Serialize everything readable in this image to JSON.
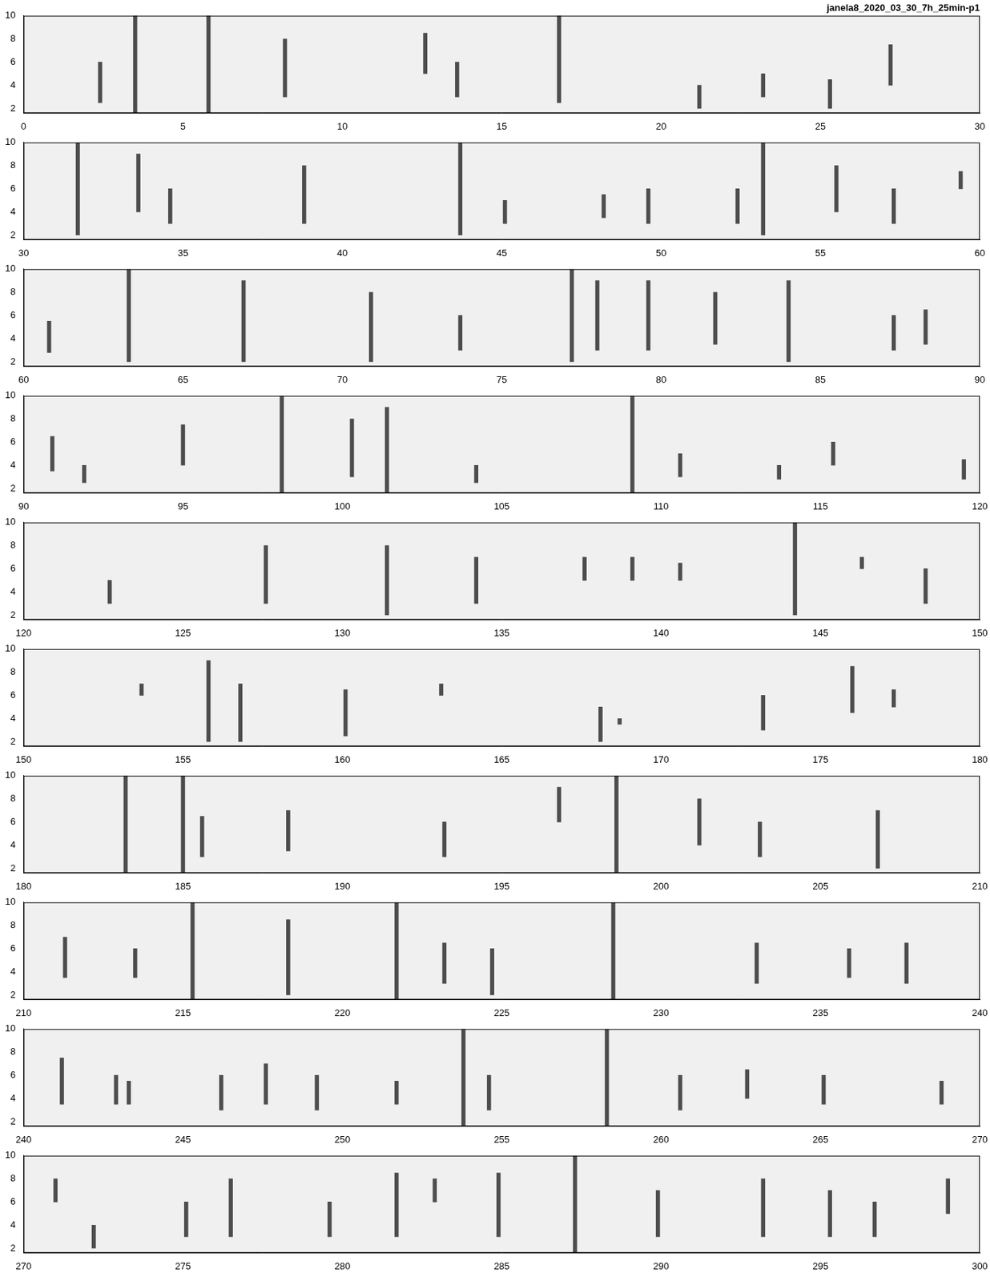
{
  "chart_data": [
    {
      "type": "bar",
      "title": "janela8_2020_03_30_7h_25min-p1",
      "x": [
        2.4,
        3.5,
        5.8,
        8.2,
        12.6,
        13.6,
        16.8,
        21.2,
        23.2,
        25.3,
        27.2
      ],
      "values": [
        [
          2.5,
          6
        ],
        [
          1.6,
          10
        ],
        [
          1.6,
          10
        ],
        [
          3,
          8
        ],
        [
          5,
          8.5
        ],
        [
          3,
          6
        ],
        [
          2.5,
          10
        ],
        [
          2,
          4
        ],
        [
          3,
          5
        ],
        [
          2,
          4.5
        ],
        [
          4,
          7.5
        ]
      ],
      "color": "#4d4d4d",
      "xlim": [
        0,
        30
      ],
      "xticks": [
        0,
        5,
        10,
        15,
        20,
        25,
        30
      ],
      "ylim": [
        1.6,
        10
      ],
      "yticks": [
        2,
        4,
        6,
        8,
        10
      ],
      "grid": false
    },
    {
      "type": "bar",
      "x": [
        31.7,
        33.6,
        34.6,
        38.8,
        43.7,
        45.1,
        48.2,
        49.6,
        52.4,
        53.2,
        55.5,
        57.3,
        59.4
      ],
      "values": [
        [
          2,
          10
        ],
        [
          4,
          9
        ],
        [
          3,
          6
        ],
        [
          3,
          8
        ],
        [
          2,
          10
        ],
        [
          3,
          5
        ],
        [
          3.5,
          5.5
        ],
        [
          3,
          6
        ],
        [
          3,
          6
        ],
        [
          2,
          10
        ],
        [
          4,
          8
        ],
        [
          3,
          6
        ],
        [
          6,
          7.5
        ]
      ],
      "color": "#4d4d4d",
      "xlim": [
        30,
        60
      ],
      "xticks": [
        30,
        35,
        40,
        45,
        50,
        55,
        60
      ],
      "ylim": [
        1.6,
        10
      ],
      "yticks": [
        2,
        4,
        6,
        8,
        10
      ],
      "grid": false
    },
    {
      "type": "bar",
      "x": [
        60.8,
        63.3,
        66.9,
        70.9,
        73.7,
        77.2,
        78,
        79.6,
        81.7,
        84,
        87.3,
        88.3
      ],
      "values": [
        [
          2.8,
          5.5
        ],
        [
          2,
          10
        ],
        [
          2,
          9
        ],
        [
          2,
          8
        ],
        [
          3,
          6
        ],
        [
          2,
          10
        ],
        [
          3,
          9
        ],
        [
          3,
          9
        ],
        [
          3.5,
          8
        ],
        [
          2,
          9
        ],
        [
          3,
          6
        ],
        [
          3.5,
          6.5
        ]
      ],
      "color": "#4d4d4d",
      "xlim": [
        60,
        90
      ],
      "xticks": [
        60,
        65,
        70,
        75,
        80,
        85,
        90
      ],
      "ylim": [
        1.6,
        10
      ],
      "yticks": [
        2,
        4,
        6,
        8,
        10
      ],
      "grid": false
    },
    {
      "type": "bar",
      "x": [
        90.9,
        91.9,
        95,
        98.1,
        100.3,
        101.4,
        104.2,
        109.1,
        110.6,
        113.7,
        115.4,
        119.5
      ],
      "values": [
        [
          3.5,
          6.5
        ],
        [
          2.5,
          4
        ],
        [
          4,
          7.5
        ],
        [
          1.6,
          10
        ],
        [
          3,
          8
        ],
        [
          1.6,
          9
        ],
        [
          2.5,
          4
        ],
        [
          1.6,
          10
        ],
        [
          3,
          5
        ],
        [
          2.8,
          4
        ],
        [
          4,
          6
        ],
        [
          2.8,
          4.5
        ]
      ],
      "color": "#4d4d4d",
      "xlim": [
        90,
        120
      ],
      "xticks": [
        90,
        95,
        100,
        105,
        110,
        115,
        120
      ],
      "ylim": [
        1.6,
        10
      ],
      "yticks": [
        2,
        4,
        6,
        8,
        10
      ],
      "grid": false
    },
    {
      "type": "bar",
      "x": [
        122.7,
        127.6,
        131.4,
        134.2,
        137.6,
        139.1,
        140.6,
        144.2,
        146.3,
        148.3
      ],
      "values": [
        [
          3,
          5
        ],
        [
          3,
          8
        ],
        [
          2,
          8
        ],
        [
          3,
          7
        ],
        [
          5,
          7
        ],
        [
          5,
          7
        ],
        [
          5,
          6.5
        ],
        [
          2,
          10
        ],
        [
          6,
          7
        ],
        [
          3,
          6
        ]
      ],
      "color": "#4d4d4d",
      "xlim": [
        120,
        150
      ],
      "xticks": [
        120,
        125,
        130,
        135,
        140,
        145,
        150
      ],
      "ylim": [
        1.6,
        10
      ],
      "yticks": [
        2,
        4,
        6,
        8,
        10
      ],
      "grid": false
    },
    {
      "type": "bar",
      "x": [
        153.7,
        155.8,
        156.8,
        160.1,
        163.1,
        168.1,
        168.7,
        173.2,
        176,
        177.3
      ],
      "values": [
        [
          6,
          7
        ],
        [
          2,
          9
        ],
        [
          2,
          7
        ],
        [
          2.5,
          6.5
        ],
        [
          6,
          7
        ],
        [
          2,
          5
        ],
        [
          3.5,
          4
        ],
        [
          3,
          6
        ],
        [
          4.5,
          8.5
        ],
        [
          5,
          6.5
        ]
      ],
      "color": "#4d4d4d",
      "xlim": [
        150,
        180
      ],
      "xticks": [
        150,
        155,
        160,
        165,
        170,
        175,
        180
      ],
      "ylim": [
        1.6,
        10
      ],
      "yticks": [
        2,
        4,
        6,
        8,
        10
      ],
      "grid": false
    },
    {
      "type": "bar",
      "x": [
        183.2,
        185,
        185.6,
        188.3,
        193.2,
        196.8,
        198.6,
        201.2,
        203.1,
        206.8
      ],
      "values": [
        [
          1.6,
          10
        ],
        [
          1.6,
          10
        ],
        [
          3,
          6.5
        ],
        [
          3.5,
          7
        ],
        [
          3,
          6
        ],
        [
          6,
          9
        ],
        [
          1.6,
          10
        ],
        [
          4,
          8
        ],
        [
          3,
          6
        ],
        [
          2,
          7
        ]
      ],
      "color": "#4d4d4d",
      "xlim": [
        180,
        210
      ],
      "xticks": [
        180,
        185,
        190,
        195,
        200,
        205,
        210
      ],
      "ylim": [
        1.6,
        10
      ],
      "yticks": [
        2,
        4,
        6,
        8,
        10
      ],
      "grid": false
    },
    {
      "type": "bar",
      "x": [
        211.3,
        213.5,
        215.3,
        218.3,
        221.7,
        223.2,
        224.7,
        228.5,
        233,
        235.9,
        237.7
      ],
      "values": [
        [
          3.5,
          7
        ],
        [
          3.5,
          6
        ],
        [
          1.6,
          10
        ],
        [
          2,
          8.5
        ],
        [
          1.6,
          10
        ],
        [
          3,
          6.5
        ],
        [
          2,
          6
        ],
        [
          1.6,
          10
        ],
        [
          3,
          6.5
        ],
        [
          3.5,
          6
        ],
        [
          3,
          6.5
        ]
      ],
      "color": "#4d4d4d",
      "xlim": [
        210,
        240
      ],
      "xticks": [
        210,
        215,
        220,
        225,
        230,
        235,
        240
      ],
      "ylim": [
        1.6,
        10
      ],
      "yticks": [
        2,
        4,
        6,
        8,
        10
      ],
      "grid": false
    },
    {
      "type": "bar",
      "x": [
        241.2,
        242.9,
        243.3,
        246.2,
        247.6,
        249.2,
        251.7,
        253.8,
        254.6,
        258.3,
        260.6,
        262.7,
        265.1,
        268.8
      ],
      "values": [
        [
          3.5,
          7.5
        ],
        [
          3.5,
          6
        ],
        [
          3.5,
          5.5
        ],
        [
          3,
          6
        ],
        [
          3.5,
          7
        ],
        [
          3,
          6
        ],
        [
          3.5,
          5.5
        ],
        [
          1.6,
          10
        ],
        [
          3,
          6
        ],
        [
          1.6,
          10
        ],
        [
          3,
          6
        ],
        [
          4,
          6.5
        ],
        [
          3.5,
          6
        ],
        [
          3.5,
          5.5
        ]
      ],
      "color": "#4d4d4d",
      "xlim": [
        240,
        270
      ],
      "xticks": [
        240,
        245,
        250,
        255,
        260,
        265,
        270
      ],
      "ylim": [
        1.6,
        10
      ],
      "yticks": [
        2,
        4,
        6,
        8,
        10
      ],
      "grid": false
    },
    {
      "type": "bar",
      "x": [
        271,
        272.2,
        275.1,
        276.5,
        279.6,
        281.7,
        282.9,
        284.9,
        287.3,
        289.9,
        293.2,
        295.3,
        296.7,
        299
      ],
      "values": [
        [
          6,
          8
        ],
        [
          2,
          4
        ],
        [
          3,
          6
        ],
        [
          3,
          8
        ],
        [
          3,
          6
        ],
        [
          3,
          8.5
        ],
        [
          6,
          8
        ],
        [
          3,
          8.5
        ],
        [
          1.6,
          10
        ],
        [
          3,
          7
        ],
        [
          3,
          8
        ],
        [
          3,
          7
        ],
        [
          3,
          6
        ],
        [
          5,
          8
        ]
      ],
      "color": "#4d4d4d",
      "xlim": [
        270,
        300
      ],
      "xticks": [
        270,
        275,
        280,
        285,
        290,
        295,
        300
      ],
      "ylim": [
        1.6,
        10
      ],
      "yticks": [
        2,
        4,
        6,
        8,
        10
      ],
      "grid": false
    }
  ]
}
